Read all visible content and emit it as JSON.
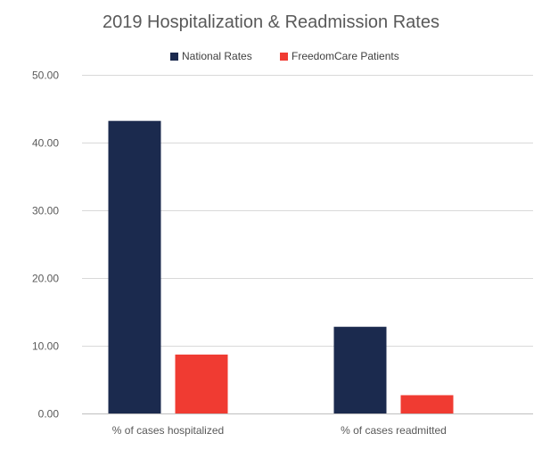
{
  "chart_data": {
    "type": "bar",
    "title": "2019 Hospitalization & Readmission Rates",
    "xlabel": "",
    "ylabel": "",
    "categories": [
      "% of cases hospitalized",
      "% of cases readmitted"
    ],
    "series": [
      {
        "name": "National Rates",
        "values": [
          43.2,
          12.8
        ],
        "color": "#1b2a4e"
      },
      {
        "name": "FreedomCare Patients",
        "values": [
          8.7,
          2.7
        ],
        "color": "#f03b32"
      }
    ],
    "ylim": [
      0,
      50
    ],
    "yticks": [
      0,
      10,
      20,
      30,
      40,
      50
    ],
    "ytick_labels": [
      "0.00",
      "10.00",
      "20.00",
      "30.00",
      "40.00",
      "50.00"
    ],
    "grid": true,
    "legend_position": "top"
  }
}
